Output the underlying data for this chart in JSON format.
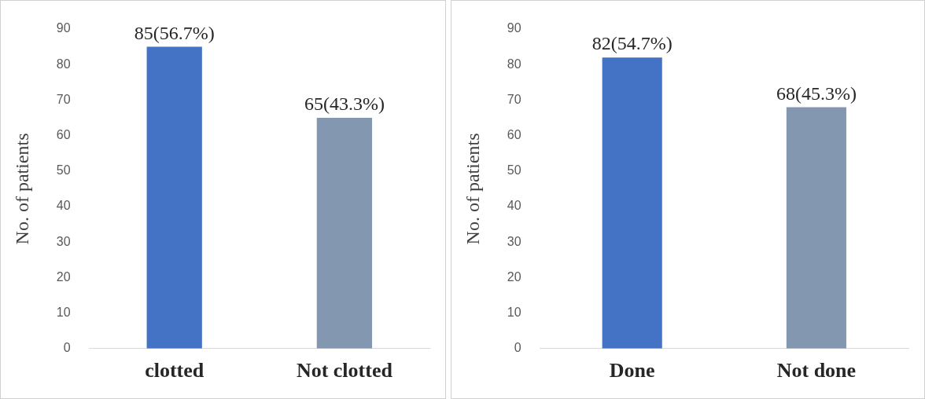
{
  "chart_data": [
    {
      "type": "bar",
      "ylabel": "No. of patients",
      "categories": [
        "clotted",
        "Not clotted"
      ],
      "values": [
        85,
        65
      ],
      "colors": [
        "#4472c4",
        "#8497b0"
      ],
      "value_labels": [
        "85(56.7%)",
        "65(43.3%)"
      ],
      "ylim": [
        0,
        90
      ],
      "yticks": [
        0,
        10,
        20,
        30,
        40,
        50,
        60,
        70,
        80,
        90
      ],
      "grid": false,
      "legend": false
    },
    {
      "type": "bar",
      "ylabel": "No. of patients",
      "categories": [
        "Done",
        "Not done"
      ],
      "values": [
        82,
        68
      ],
      "colors": [
        "#4472c4",
        "#8497b0"
      ],
      "value_labels": [
        "82(54.7%)",
        "68(45.3%)"
      ],
      "ylim": [
        0,
        90
      ],
      "yticks": [
        0,
        10,
        20,
        30,
        40,
        50,
        60,
        70,
        80,
        90
      ],
      "grid": false,
      "legend": false
    }
  ]
}
